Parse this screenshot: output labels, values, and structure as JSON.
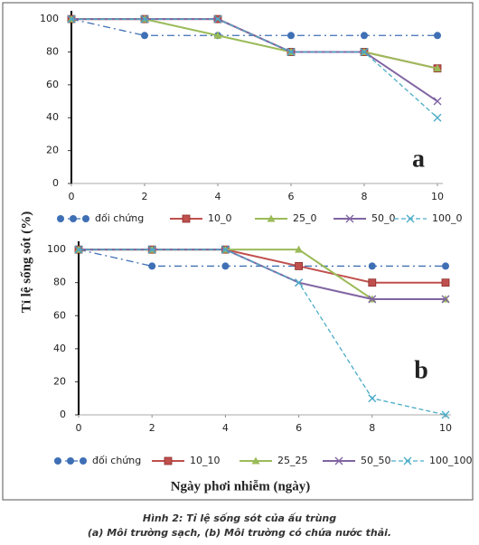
{
  "figure": {
    "ylabel": "Tỉ lệ sống sót (%)",
    "xlabel": "Ngày phơi nhiễm (ngày)",
    "caption": [
      "Hình 2: Tỉ lệ sống sót của ấu trùng",
      "(a) Môi trường sạch, (b) Môi trường có chứa nước thải."
    ]
  },
  "chart_data": [
    {
      "type": "line",
      "annotation": "a",
      "x": [
        0,
        2,
        4,
        6,
        8,
        10
      ],
      "xlim": [
        0,
        10
      ],
      "xticks": [
        0,
        2,
        4,
        6,
        8,
        10
      ],
      "ylim": [
        0,
        105
      ],
      "yticks": [
        0,
        20,
        40,
        60,
        80,
        100
      ],
      "series": [
        {
          "name": "đối chứng",
          "color": "#3f6fb5",
          "marker": "circle",
          "dash": "dashdot",
          "values": [
            100,
            90,
            90,
            90,
            90,
            90
          ]
        },
        {
          "name": "10_0",
          "color": "#c0504d",
          "marker": "square",
          "dash": "solid",
          "values": [
            100,
            100,
            100,
            80,
            80,
            70
          ]
        },
        {
          "name": "25_0",
          "color": "#9bbb59",
          "marker": "triangle",
          "dash": "solid",
          "values": [
            100,
            100,
            90,
            80,
            80,
            70
          ]
        },
        {
          "name": "50_0",
          "color": "#8064a2",
          "marker": "cross",
          "dash": "solid",
          "values": [
            100,
            100,
            100,
            80,
            80,
            50
          ]
        },
        {
          "name": "100_0",
          "color": "#4bacc6",
          "marker": "cross",
          "dash": "dashed",
          "values": [
            100,
            100,
            100,
            80,
            80,
            40
          ]
        }
      ]
    },
    {
      "type": "line",
      "annotation": "b",
      "x": [
        0,
        2,
        4,
        6,
        8,
        10
      ],
      "xlim": [
        0,
        10
      ],
      "xticks": [
        0,
        2,
        4,
        6,
        8,
        10
      ],
      "ylim": [
        0,
        105
      ],
      "yticks": [
        0,
        20,
        40,
        60,
        80,
        100
      ],
      "series": [
        {
          "name": "đối chứng",
          "color": "#3f6fb5",
          "marker": "circle",
          "dash": "dashdot",
          "values": [
            100,
            90,
            90,
            90,
            90,
            90
          ]
        },
        {
          "name": "10_10",
          "color": "#c0504d",
          "marker": "square",
          "dash": "solid",
          "values": [
            100,
            100,
            100,
            90,
            80,
            80
          ]
        },
        {
          "name": "25_25",
          "color": "#9bbb59",
          "marker": "triangle",
          "dash": "solid",
          "values": [
            100,
            100,
            100,
            100,
            70,
            70
          ]
        },
        {
          "name": "50_50",
          "color": "#8064a2",
          "marker": "cross",
          "dash": "solid",
          "values": [
            100,
            100,
            100,
            80,
            70,
            70
          ]
        },
        {
          "name": "100_100",
          "color": "#4bacc6",
          "marker": "cross",
          "dash": "dashed",
          "values": [
            100,
            100,
            100,
            80,
            10,
            0
          ]
        }
      ]
    }
  ]
}
